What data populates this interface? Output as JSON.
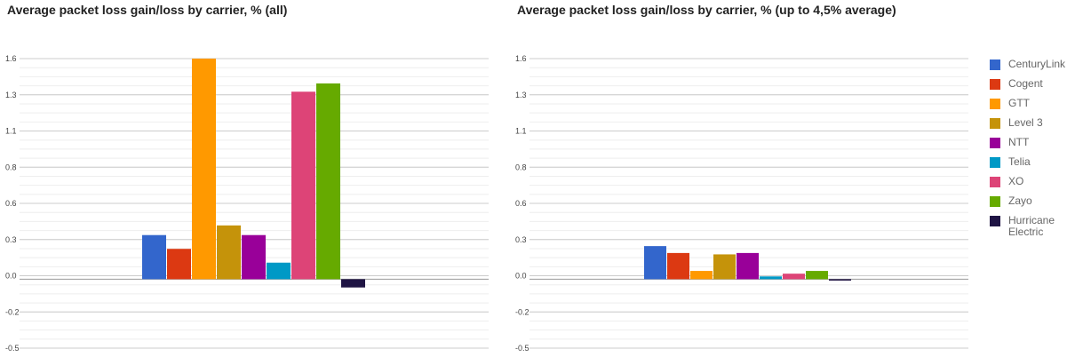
{
  "chart_data": [
    {
      "type": "bar",
      "title": "Average packet loss gain/loss by carrier, % (all)",
      "y_tick_labels": [
        "1.6",
        "1.3",
        "1.1",
        "0.8",
        "0.6",
        "0.3",
        "0.0",
        "-0.2",
        "-0.5"
      ],
      "ylim": [
        -0.5,
        1.6
      ],
      "grid": true,
      "series": [
        {
          "name": "CenturyLink",
          "values": [
            0.32
          ]
        },
        {
          "name": "Cogent",
          "values": [
            0.22
          ]
        },
        {
          "name": "GTT",
          "values": [
            1.6
          ]
        },
        {
          "name": "Level 3",
          "values": [
            0.39
          ]
        },
        {
          "name": "NTT",
          "values": [
            0.32
          ]
        },
        {
          "name": "Telia",
          "values": [
            0.12
          ]
        },
        {
          "name": "XO",
          "values": [
            1.36
          ]
        },
        {
          "name": "Zayo",
          "values": [
            1.42
          ]
        },
        {
          "name": "Hurricane Electric",
          "values": [
            -0.06
          ]
        }
      ]
    },
    {
      "type": "bar",
      "title": "Average packet loss gain/loss by carrier, % (up to 4,5% average)",
      "y_tick_labels": [
        "1.6",
        "1.3",
        "1.1",
        "0.8",
        "0.6",
        "0.3",
        "0.0",
        "-0.2",
        "-0.5"
      ],
      "ylim": [
        -0.5,
        1.6
      ],
      "grid": true,
      "legend_position": "right",
      "series": [
        {
          "name": "CenturyLink",
          "values": [
            0.24
          ]
        },
        {
          "name": "Cogent",
          "values": [
            0.19
          ]
        },
        {
          "name": "GTT",
          "values": [
            0.06
          ]
        },
        {
          "name": "Level 3",
          "values": [
            0.18
          ]
        },
        {
          "name": "NTT",
          "values": [
            0.19
          ]
        },
        {
          "name": "Telia",
          "values": [
            0.02
          ]
        },
        {
          "name": "XO",
          "values": [
            0.04
          ]
        },
        {
          "name": "Zayo",
          "values": [
            0.06
          ]
        },
        {
          "name": "Hurricane Electric",
          "values": [
            -0.01
          ]
        }
      ]
    }
  ],
  "colors": [
    "#3366cc",
    "#dc3912",
    "#ff9900",
    "#c5930a",
    "#990099",
    "#0099c6",
    "#dd4477",
    "#66aa00",
    "#1f1444"
  ],
  "legend": {
    "items": [
      "CenturyLink",
      "Cogent",
      "GTT",
      "Level 3",
      "NTT",
      "Telia",
      "XO",
      "Zayo",
      "Hurricane Electric"
    ]
  }
}
